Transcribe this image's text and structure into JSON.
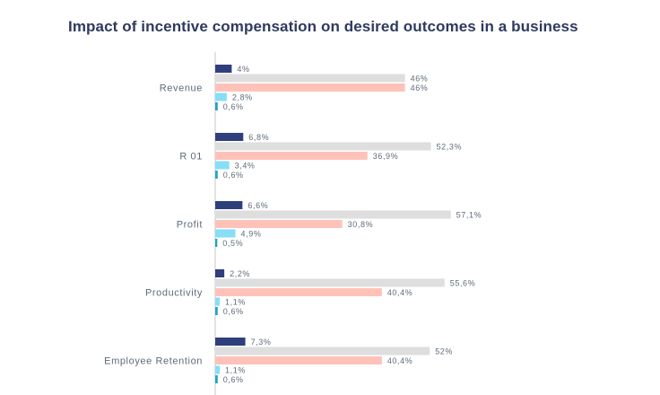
{
  "chart_data": {
    "type": "bar",
    "orientation": "horizontal",
    "title": "Impact of incentive compensation on desired outcomes in a business",
    "categories": [
      "Revenue",
      "R 01",
      "Profit",
      "Productivity",
      "Employee Retention"
    ],
    "series": [
      {
        "values": [
          4,
          6.8,
          6.6,
          2.2,
          7.3
        ],
        "labels": [
          "4%",
          "6,8%",
          "6,6%",
          "2,2%",
          "7,3%"
        ],
        "color": "#2e3f7c"
      },
      {
        "values": [
          46,
          52.3,
          57.1,
          55.6,
          52
        ],
        "labels": [
          "46%",
          "52,3%",
          "57,1%",
          "55,6%",
          "52%"
        ],
        "color": "#dedede"
      },
      {
        "values": [
          46,
          36.9,
          30.8,
          40.4,
          40.4
        ],
        "labels": [
          "46%",
          "36,9%",
          "30,8%",
          "40,4%",
          "40,4%"
        ],
        "color": "#ffc2b9"
      },
      {
        "values": [
          2.8,
          3.4,
          4.9,
          1.1,
          1.1
        ],
        "labels": [
          "2,8%",
          "3,4%",
          "4,9%",
          "1,1%",
          "1,1%"
        ],
        "color": "#86def7"
      },
      {
        "values": [
          0.6,
          0.6,
          0.5,
          0.6,
          0.6
        ],
        "labels": [
          "0,6%",
          "0,6%",
          "0,5%",
          "0,6%",
          "0,6%"
        ],
        "color": "#1fa3c4"
      }
    ],
    "xlim": [
      0,
      60
    ],
    "grid": false,
    "legend": "none"
  }
}
